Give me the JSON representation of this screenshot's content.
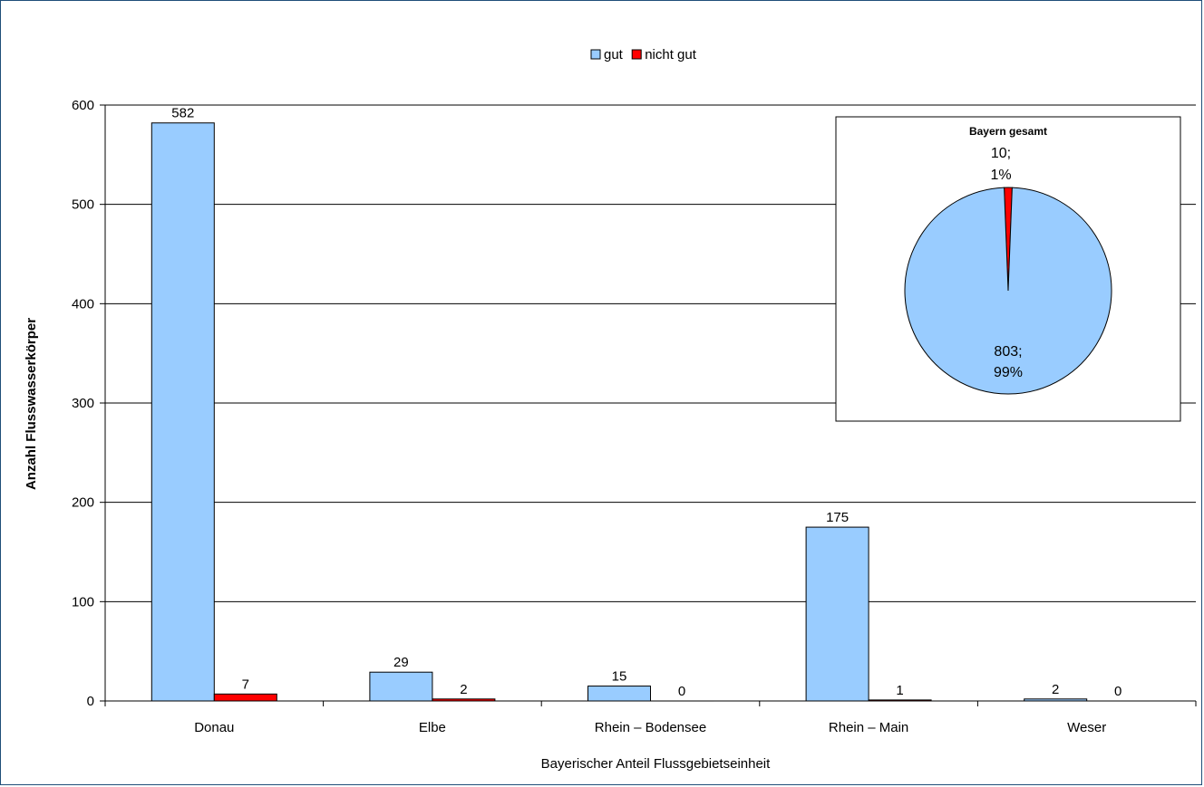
{
  "chart_data": [
    {
      "type": "bar",
      "title": "",
      "xlabel": "Bayerischer Anteil Flussgebietseinheit",
      "ylabel": "Anzahl Flusswasserkörper",
      "categories": [
        "Donau",
        "Elbe",
        "Rhein – Bodensee",
        "Rhein – Main",
        "Weser"
      ],
      "series": [
        {
          "name": "gut",
          "color": "#99ccff",
          "values": [
            582,
            29,
            15,
            175,
            2
          ]
        },
        {
          "name": "nicht gut",
          "color": "#ff0000",
          "values": [
            7,
            2,
            0,
            1,
            0
          ]
        }
      ],
      "ylim": [
        0,
        600
      ],
      "yticks": [
        0,
        100,
        200,
        300,
        400,
        500,
        600
      ],
      "grid": true,
      "legend": "top-center"
    },
    {
      "type": "pie",
      "title": "Bayern gesamt",
      "slices": [
        {
          "name": "gut",
          "value": 803,
          "percent": "99%",
          "label_value": "803;",
          "color": "#99ccff"
        },
        {
          "name": "nicht gut",
          "value": 10,
          "percent": "1%",
          "label_value": "10;",
          "color": "#ff0000"
        }
      ]
    }
  ]
}
